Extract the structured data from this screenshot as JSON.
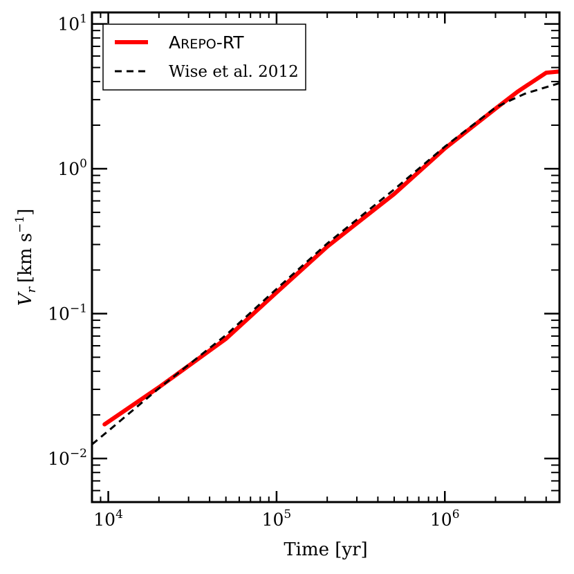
{
  "chart_data": {
    "type": "line",
    "xlabel": "Time [yr]",
    "ylabel_base": "V",
    "ylabel_sub": "r",
    "ylabel_units": "[km s",
    "ylabel_units_exp": "−1",
    "ylabel_units_close": "]",
    "x_scale": "log",
    "y_scale": "log",
    "xlim": [
      8000,
      4800000
    ],
    "ylim": [
      0.005,
      12
    ],
    "x_ticks": [
      {
        "value": 10000,
        "base": "10",
        "exp": "4"
      },
      {
        "value": 100000,
        "base": "10",
        "exp": "5"
      },
      {
        "value": 1000000,
        "base": "10",
        "exp": "6"
      }
    ],
    "y_ticks": [
      {
        "value": 0.01,
        "base": "10",
        "exp": "−2"
      },
      {
        "value": 0.1,
        "base": "10",
        "exp": "−1"
      },
      {
        "value": 1,
        "base": "10",
        "exp": "0"
      },
      {
        "value": 10,
        "base": "10",
        "exp": "1"
      }
    ],
    "legend_position": "top-left",
    "series": [
      {
        "name": "Arepo-RT",
        "name_display": {
          "first": "A",
          "rest": "REPO",
          "suffix": "-RT"
        },
        "color": "#ff0000",
        "style": "solid",
        "x": [
          9500,
          20000,
          50000,
          100000,
          200000,
          500000,
          1000000,
          2000000,
          2700000,
          4000000,
          4800000
        ],
        "y": [
          0.0172,
          0.031,
          0.067,
          0.14,
          0.29,
          0.67,
          1.38,
          2.6,
          3.4,
          4.6,
          4.7
        ]
      },
      {
        "name": "Wise et al. 2012",
        "color": "#000000",
        "style": "dashed",
        "x": [
          8000,
          10000,
          20000,
          50000,
          100000,
          200000,
          500000,
          1000000,
          2000000,
          2500000,
          3000000,
          4800000
        ],
        "y": [
          0.0125,
          0.0155,
          0.0305,
          0.071,
          0.148,
          0.305,
          0.72,
          1.42,
          2.65,
          3.0,
          3.3,
          3.9
        ]
      }
    ]
  }
}
